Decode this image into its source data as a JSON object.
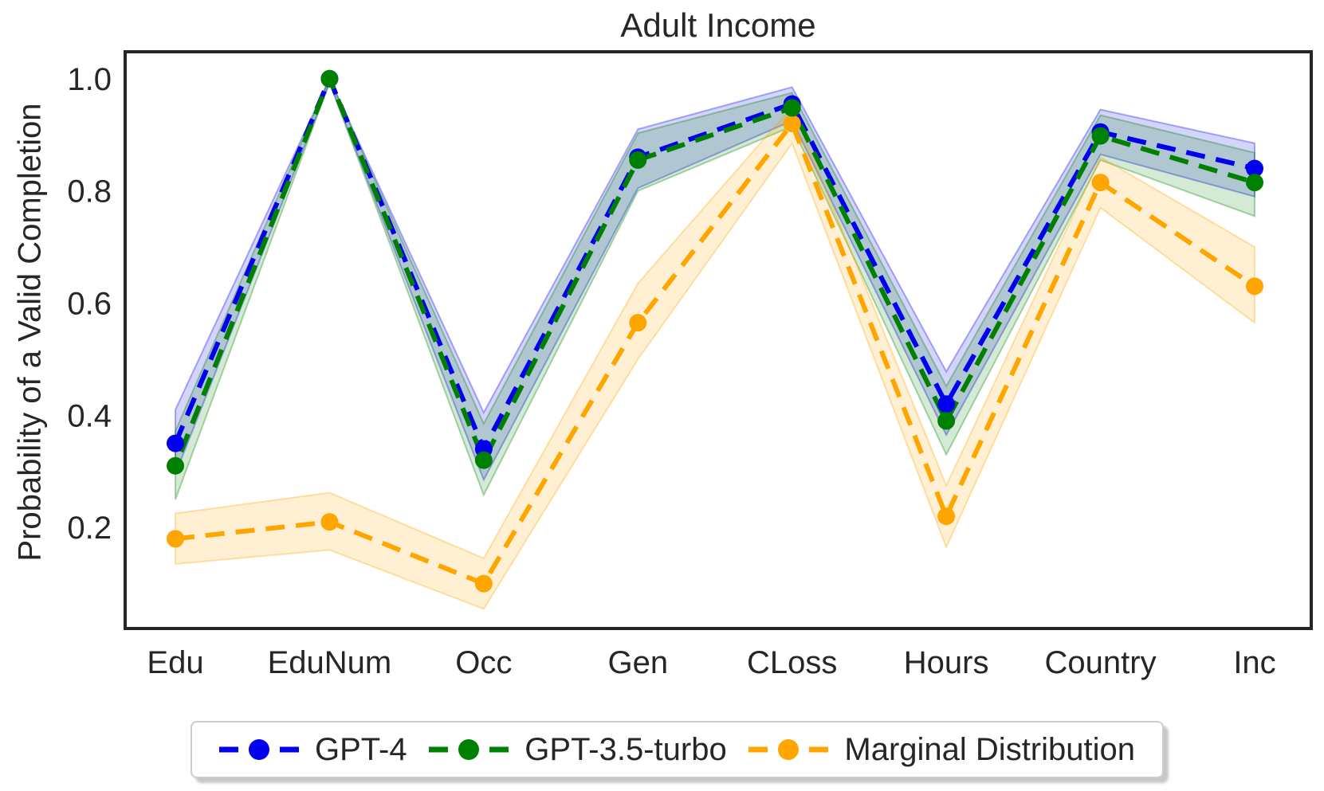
{
  "title": "Adult Income",
  "axis_text_color": "#262626",
  "chart_data": {
    "type": "line",
    "title": "Adult Income",
    "xlabel": "",
    "ylabel": "Probability of a Valid Completion",
    "categories": [
      "Edu",
      "EduNum",
      "Occ",
      "Gen",
      "CLoss",
      "Hours",
      "Country",
      "Inc"
    ],
    "ytick_labels": [
      "0.2",
      "0.4",
      "0.6",
      "0.8",
      "1.0"
    ],
    "yticks": [
      0.2,
      0.4,
      0.6,
      0.8,
      1.0
    ],
    "ylim": [
      0.02,
      1.048
    ],
    "grid": false,
    "legend_position": "bottom",
    "line_style": "dashed",
    "marker": "circle",
    "series": [
      {
        "name": "GPT-4",
        "color": "#0000EE",
        "values": [
          0.35,
          1.0,
          0.34,
          0.86,
          0.955,
          0.42,
          0.905,
          0.84
        ],
        "band_lower": [
          0.295,
          0.993,
          0.285,
          0.805,
          0.925,
          0.365,
          0.865,
          0.79
        ],
        "band_upper": [
          0.41,
          1.0,
          0.405,
          0.91,
          0.985,
          0.478,
          0.945,
          0.885
        ]
      },
      {
        "name": "GPT-3.5-turbo",
        "color": "#008000",
        "values": [
          0.31,
          1.0,
          0.32,
          0.855,
          0.948,
          0.39,
          0.898,
          0.815
        ],
        "band_lower": [
          0.25,
          0.993,
          0.258,
          0.8,
          0.915,
          0.33,
          0.855,
          0.755
        ],
        "band_upper": [
          0.372,
          1.0,
          0.385,
          0.903,
          0.975,
          0.452,
          0.935,
          0.868
        ]
      },
      {
        "name": "Marginal Distribution",
        "color": "#FFA500",
        "values": [
          0.18,
          0.21,
          0.1,
          0.565,
          0.92,
          0.22,
          0.815,
          0.63
        ],
        "band_lower": [
          0.135,
          0.16,
          0.055,
          0.5,
          0.885,
          0.165,
          0.77,
          0.565
        ],
        "band_upper": [
          0.225,
          0.262,
          0.145,
          0.635,
          0.95,
          0.275,
          0.86,
          0.7
        ]
      }
    ]
  }
}
